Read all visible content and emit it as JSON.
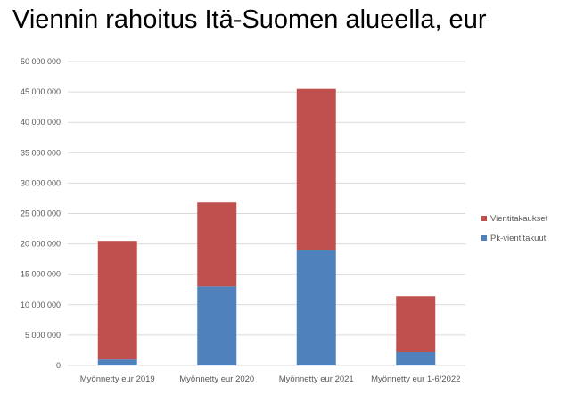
{
  "chart_data": {
    "type": "bar",
    "stacked": true,
    "title": "Viennin rahoitus Itä-Suomen alueella, eur",
    "categories": [
      "Myönnetty eur 2019",
      "Myönnetty eur 2020",
      "Myönnetty eur 2021",
      "Myönnetty eur 1-6/2022"
    ],
    "series": [
      {
        "name": "Pk-vientitakuut",
        "color": "#4F81BD",
        "values": [
          1000000,
          13000000,
          19000000,
          2200000
        ]
      },
      {
        "name": "Vientitakaukset",
        "color": "#C0504D",
        "values": [
          19500000,
          13800000,
          26500000,
          9200000
        ]
      }
    ],
    "ylim": [
      0,
      50000000
    ],
    "yticks": [
      0,
      5000000,
      10000000,
      15000000,
      20000000,
      25000000,
      30000000,
      35000000,
      40000000,
      45000000,
      50000000
    ],
    "ytick_labels": [
      "0",
      "5 000 000",
      "10 000 000",
      "15 000 000",
      "20 000 000",
      "25 000 000",
      "30 000 000",
      "35 000 000",
      "40 000 000",
      "45 000 000",
      "50 000 000"
    ],
    "grid": true,
    "legend_position": "right",
    "legend_order": [
      "Vientitakaukset",
      "Pk-vientitakuut"
    ],
    "xlabel": "",
    "ylabel": ""
  }
}
